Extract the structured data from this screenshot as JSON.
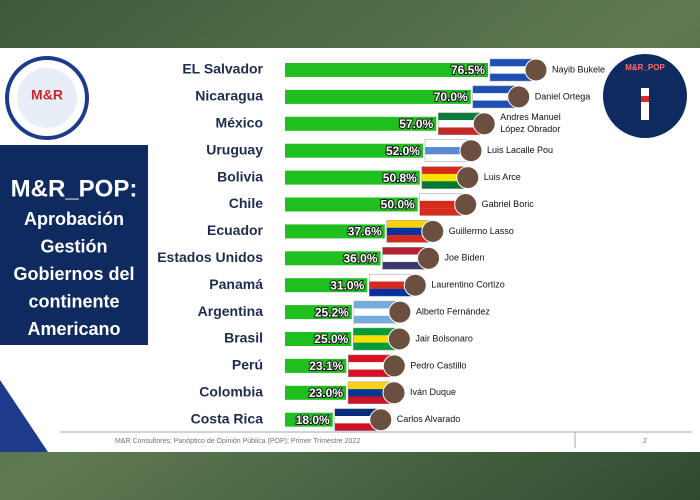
{
  "chart_data": {
    "type": "bar",
    "orientation": "horizontal",
    "title": [
      "M&R_POP:",
      "Aprobación",
      "Gestión",
      "Gobiernos del",
      "continente",
      "Americano"
    ],
    "categories": [
      "EL Salvador",
      "Nicaragua",
      "México",
      "Uruguay",
      "Bolivia",
      "Chile",
      "Ecuador",
      "Estados Unidos",
      "Panamá",
      "Argentina",
      "Brasil",
      "Perú",
      "Colombia",
      "Costa Rica"
    ],
    "values": [
      76.5,
      70.0,
      57.0,
      52.0,
      50.8,
      50.0,
      37.6,
      36.0,
      31.0,
      25.2,
      25.0,
      23.1,
      23.0,
      18.0
    ],
    "value_labels": [
      "76.5%",
      "70.0%",
      "57.0%",
      "52.0%",
      "50.8%",
      "50.0%",
      "37.6%",
      "36.0%",
      "31.0%",
      "25.2%",
      "25.0%",
      "23.1%",
      "23.0%",
      "18.0%"
    ],
    "leaders": [
      "Nayib Bukele",
      "Daniel Ortega",
      [
        "Andres Manuel",
        "López Obrador"
      ],
      "Luis Lacalle Pou",
      "Luis Arce",
      "Gabriel Boric",
      "Guillermo Lasso",
      "Joe Biden",
      "Laurentino Cortizo",
      "Alberto Fernández",
      "Jair Bolsonaro",
      "Pedro Castillo",
      "Iván Duque",
      "Carlos Alvarado"
    ],
    "color": "#1fbf1f",
    "left_logo": "M&R",
    "right_logo": "M&R_POP",
    "footer": "M&R Consultores; Panóptico de Opinión Pública (POP); Primer Trimestre 2022",
    "page_number": "2"
  }
}
